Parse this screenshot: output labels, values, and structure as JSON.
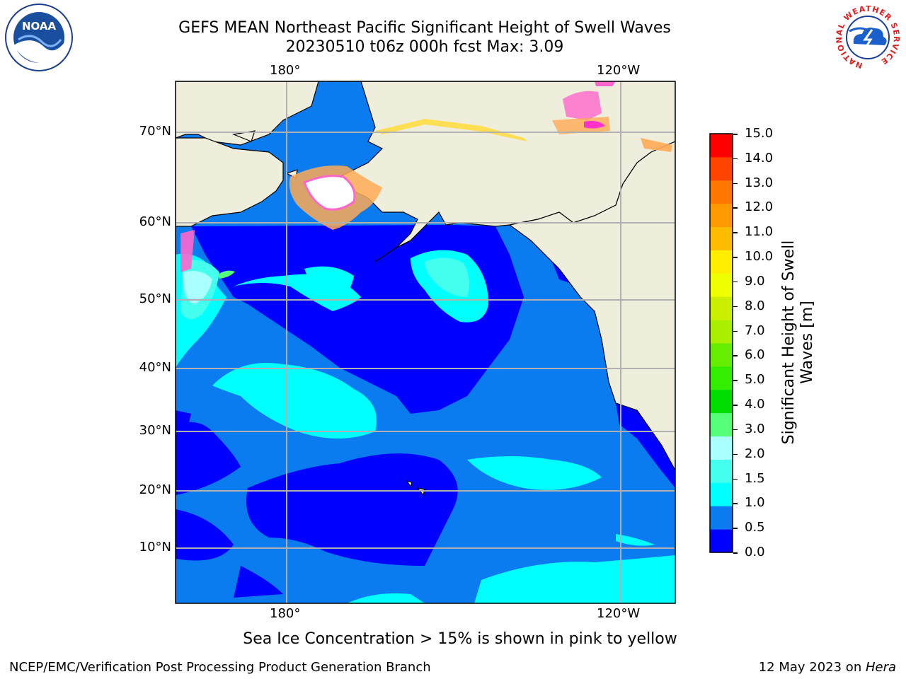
{
  "title": {
    "line1": "GEFS MEAN Northeast Pacific Significant Height of Swell Waves",
    "line2": "20230510 t06z 000h fcst   Max: 3.09"
  },
  "map": {
    "lon_labels": [
      "180°",
      "120°W"
    ],
    "lat_labels": [
      "70°N",
      "60°N",
      "50°N",
      "40°N",
      "30°N",
      "20°N",
      "10°N"
    ],
    "ocean_colors": {
      "c0": "#0000ff",
      "c05": "#0b7bf0",
      "c1": "#00ffff",
      "c15": "#44ffee",
      "c2": "#aaffff",
      "c3": "#55ff77"
    },
    "land_color": "#efeddb",
    "ice_colors": [
      "#ff66cc",
      "#ffaa55",
      "#ffdd44"
    ]
  },
  "colorbar": {
    "title_line1": "Significant Height of Swell",
    "title_line2": "Waves [m]",
    "ticks": [
      "15.0",
      "14.0",
      "13.0",
      "12.0",
      "11.0",
      "10.0",
      "9.0",
      "8.0",
      "7.0",
      "6.0",
      "5.0",
      "4.0",
      "3.0",
      "2.0",
      "1.5",
      "1.0",
      "0.5",
      "0.0"
    ],
    "colors_bottom_to_top": [
      "#0000ff",
      "#0b7bf0",
      "#00ffff",
      "#44ffee",
      "#aaffff",
      "#55ff77",
      "#00dd00",
      "#33ee00",
      "#66ee00",
      "#aaee00",
      "#ccee00",
      "#eeff00",
      "#ffee00",
      "#ffbb00",
      "#ff9900",
      "#ff7700",
      "#ff4400",
      "#ff0000"
    ]
  },
  "note": "Sea Ice Concentration > 15% is shown in pink to yellow",
  "footer": {
    "left": "NCEP/EMC/Verification Post Processing Product Generation Branch",
    "right_text": "12 May 2023 on ",
    "right_host": "Hera"
  },
  "logos": {
    "noaa": "NOAA",
    "nws_ring": "NATIONAL WEATHER SERVICE"
  }
}
